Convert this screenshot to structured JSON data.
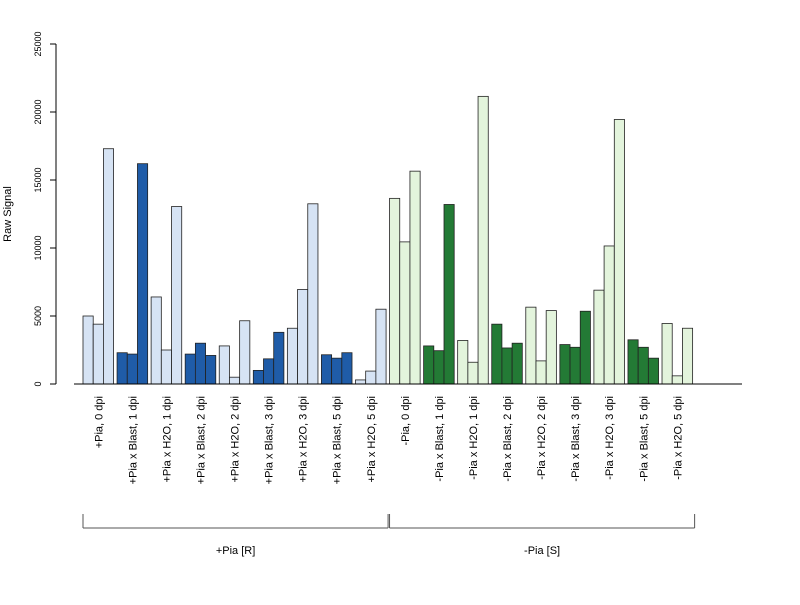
{
  "chart_data": {
    "type": "bar",
    "ylabel": "Raw Signal",
    "ylim": [
      0,
      25000
    ],
    "yticks": [
      0,
      5000,
      10000,
      15000,
      20000,
      25000
    ],
    "grid": false,
    "legend": "none",
    "colors": {
      "light_blue": "#d6e3f4",
      "dark_blue": "#1f5ca8",
      "light_green": "#e3f4dc",
      "dark_green": "#237a35"
    },
    "groups": [
      {
        "label": "+Pia, 0 dpi",
        "shade": "light_blue",
        "values": [
          5000,
          4400,
          17300
        ]
      },
      {
        "label": "+Pia x Blast, 1 dpi",
        "shade": "dark_blue",
        "values": [
          2300,
          2200,
          16200
        ]
      },
      {
        "label": "+Pia x H2O, 1 dpi",
        "shade": "light_blue",
        "values": [
          6400,
          2500,
          13050
        ]
      },
      {
        "label": "+Pia x Blast, 2 dpi",
        "shade": "dark_blue",
        "values": [
          2200,
          3000,
          2100
        ]
      },
      {
        "label": "+Pia x H2O, 2 dpi",
        "shade": "light_blue",
        "values": [
          2800,
          500,
          4650
        ]
      },
      {
        "label": "+Pia x Blast, 3 dpi",
        "shade": "dark_blue",
        "values": [
          1000,
          1850,
          3800
        ]
      },
      {
        "label": "+Pia x H2O, 3 dpi",
        "shade": "light_blue",
        "values": [
          4100,
          6950,
          13250
        ]
      },
      {
        "label": "+Pia x Blast, 5 dpi",
        "shade": "dark_blue",
        "values": [
          2150,
          1900,
          2300
        ]
      },
      {
        "label": "+Pia x H2O, 5 dpi",
        "shade": "light_blue",
        "values": [
          300,
          950,
          5500
        ]
      },
      {
        "label": "-Pia, 0 dpi",
        "shade": "light_green",
        "values": [
          13650,
          10450,
          15650
        ]
      },
      {
        "label": "-Pia x Blast, 1 dpi",
        "shade": "dark_green",
        "values": [
          2800,
          2450,
          13200
        ]
      },
      {
        "label": "-Pia x H2O, 1 dpi",
        "shade": "light_green",
        "values": [
          3200,
          1600,
          21150
        ]
      },
      {
        "label": "-Pia x Blast, 2 dpi",
        "shade": "dark_green",
        "values": [
          4400,
          2650,
          3000
        ]
      },
      {
        "label": "-Pia x H2O, 2 dpi",
        "shade": "light_green",
        "values": [
          5650,
          1700,
          5400
        ]
      },
      {
        "label": "-Pia x Blast, 3 dpi",
        "shade": "dark_green",
        "values": [
          2900,
          2700,
          5350
        ]
      },
      {
        "label": "-Pia x H2O, 3 dpi",
        "shade": "light_green",
        "values": [
          6900,
          10150,
          19450
        ]
      },
      {
        "label": "-Pia x Blast, 5 dpi",
        "shade": "dark_green",
        "values": [
          3250,
          2700,
          1900
        ]
      },
      {
        "label": "-Pia x H2O, 5 dpi",
        "shade": "light_green",
        "values": [
          4450,
          600,
          4100
        ]
      }
    ],
    "brackets": [
      {
        "label": "+Pia [R]",
        "from_group": 0,
        "to_group": 8
      },
      {
        "label": "-Pia [S]",
        "from_group": 9,
        "to_group": 17
      }
    ]
  }
}
